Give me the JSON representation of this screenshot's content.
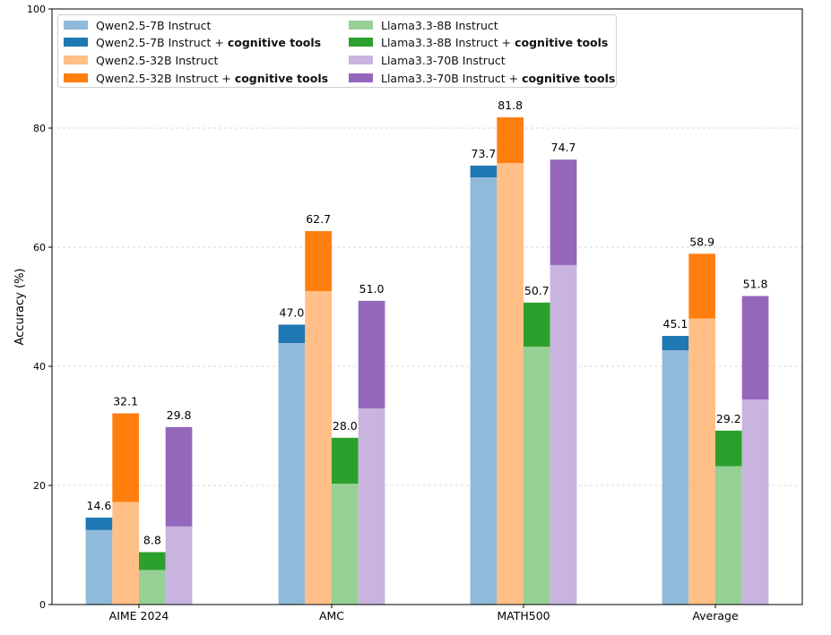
{
  "chart_data": {
    "type": "bar",
    "ylabel": "Accuracy (%)",
    "xlabel": "",
    "ylim": [
      0,
      100
    ],
    "yticks": [
      0,
      20,
      40,
      60,
      80,
      100
    ],
    "grid": "horizontal dashed",
    "legend_position": "top-left",
    "categories": [
      "AIME 2024",
      "AMC",
      "MATH500",
      "Average"
    ],
    "series": [
      {
        "name": "Qwen2.5-7B",
        "label_base": "Qwen2.5-7B Instruct",
        "label_tools_prefix": "Qwen2.5-7B Instruct + ",
        "label_tools_bold": "cognitive tools",
        "base_color": "#8fbad9",
        "tools_color": "#1f77b4",
        "base_values": [
          12.5,
          43.9,
          71.7,
          42.7
        ],
        "tools_values": [
          14.6,
          47.0,
          73.7,
          45.1
        ],
        "labels": [
          "14.6",
          "47.0",
          "73.7",
          "45.1"
        ]
      },
      {
        "name": "Qwen2.5-32B",
        "label_base": "Qwen2.5-32B Instruct",
        "label_tools_prefix": "Qwen2.5-32B Instruct + ",
        "label_tools_bold": "cognitive tools",
        "base_color": "#ffbf86",
        "tools_color": "#ff7f0e",
        "base_values": [
          17.2,
          52.6,
          74.1,
          48.0
        ],
        "tools_values": [
          32.1,
          62.7,
          81.8,
          58.9
        ],
        "labels": [
          "32.1",
          "62.7",
          "81.8",
          "58.9"
        ]
      },
      {
        "name": "Llama3.3-8B",
        "label_base": "Llama3.3-8B Instruct",
        "label_tools_prefix": "Llama3.3-8B Instruct + ",
        "label_tools_bold": "cognitive tools",
        "base_color": "#96d095",
        "tools_color": "#2ca02c",
        "base_values": [
          5.8,
          20.3,
          43.3,
          23.2
        ],
        "tools_values": [
          8.8,
          28.0,
          50.7,
          29.2
        ],
        "labels": [
          "8.8",
          "28.0",
          "50.7",
          "29.2"
        ]
      },
      {
        "name": "Llama3.3-70B",
        "label_base": "Llama3.3-70B Instruct",
        "label_tools_prefix": "Llama3.3-70B Instruct + ",
        "label_tools_bold": "cognitive tools",
        "base_color": "#c9b3df",
        "tools_color": "#9467bd",
        "base_values": [
          13.1,
          32.9,
          57.0,
          34.4
        ],
        "tools_values": [
          29.8,
          51.0,
          74.7,
          51.8
        ],
        "labels": [
          "29.8",
          "51.0",
          "74.7",
          "51.8"
        ]
      }
    ]
  }
}
